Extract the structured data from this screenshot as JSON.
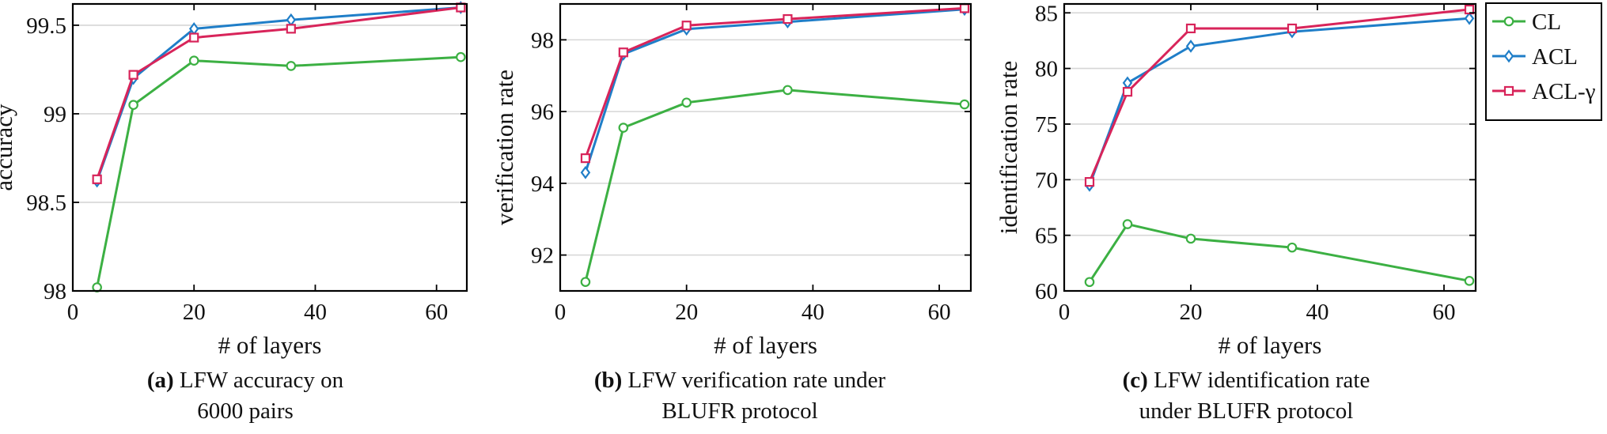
{
  "legend": {
    "items": [
      {
        "name": "CL",
        "color": "#3cb043",
        "marker": "circle"
      },
      {
        "name": "ACL",
        "color": "#1f7ec8",
        "marker": "diamond"
      },
      {
        "name": "ACL-γ",
        "color": "#d8245a",
        "marker": "square"
      }
    ],
    "placement": "right-of-panel-c"
  },
  "captions": [
    {
      "tag": "(a)",
      "line1": "LFW accuracy on",
      "line2": "6000 pairs"
    },
    {
      "tag": "(b)",
      "line1": "LFW verification rate under",
      "line2": "BLUFR protocol"
    },
    {
      "tag": "(c)",
      "line1": "LFW identification rate",
      "line2": "under BLUFR protocol"
    }
  ],
  "chart_data": [
    {
      "type": "line",
      "xlabel": "# of layers",
      "ylabel": "accuracy",
      "xlim": [
        0,
        65
      ],
      "ylim": [
        98,
        99.62
      ],
      "xticks": [
        0,
        20,
        40,
        60
      ],
      "yticks": [
        98,
        98.5,
        99,
        99.5
      ],
      "ytick_labels": [
        "98",
        "98.5",
        "99",
        "99.5"
      ],
      "grid": "horizontal",
      "x": [
        4,
        10,
        20,
        36,
        64
      ],
      "series": [
        {
          "name": "CL",
          "values": [
            98.02,
            99.05,
            99.3,
            99.27,
            99.32
          ]
        },
        {
          "name": "ACL",
          "values": [
            98.62,
            99.2,
            99.48,
            99.53,
            99.6
          ]
        },
        {
          "name": "ACL-γ",
          "values": [
            98.63,
            99.22,
            99.43,
            99.48,
            99.6
          ]
        }
      ]
    },
    {
      "type": "line",
      "xlabel": "# of layers",
      "ylabel": "verification rate",
      "xlim": [
        0,
        65
      ],
      "ylim": [
        91,
        99
      ],
      "xticks": [
        0,
        20,
        40,
        60
      ],
      "yticks": [
        92,
        94,
        96,
        98
      ],
      "ytick_labels": [
        "92",
        "94",
        "96",
        "98"
      ],
      "grid": "horizontal",
      "x": [
        4,
        10,
        20,
        36,
        64
      ],
      "series": [
        {
          "name": "CL",
          "values": [
            91.25,
            95.55,
            96.25,
            96.6,
            96.2
          ]
        },
        {
          "name": "ACL",
          "values": [
            94.3,
            97.6,
            98.3,
            98.5,
            98.85
          ]
        },
        {
          "name": "ACL-γ",
          "values": [
            94.7,
            97.65,
            98.4,
            98.58,
            98.88
          ]
        }
      ]
    },
    {
      "type": "line",
      "xlabel": "# of layers",
      "ylabel": "identification rate",
      "xlim": [
        0,
        65
      ],
      "ylim": [
        60,
        85.8
      ],
      "xticks": [
        0,
        20,
        40,
        60
      ],
      "yticks": [
        60,
        65,
        70,
        75,
        80,
        85
      ],
      "ytick_labels": [
        "60",
        "65",
        "70",
        "75",
        "80",
        "85"
      ],
      "grid": "horizontal",
      "x": [
        4,
        10,
        20,
        36,
        64
      ],
      "series": [
        {
          "name": "CL",
          "values": [
            60.8,
            66.0,
            64.7,
            63.9,
            60.9
          ]
        },
        {
          "name": "ACL",
          "values": [
            69.5,
            78.7,
            82.0,
            83.3,
            84.5
          ]
        },
        {
          "name": "ACL-γ",
          "values": [
            69.8,
            77.9,
            83.6,
            83.6,
            85.3
          ]
        }
      ]
    }
  ]
}
